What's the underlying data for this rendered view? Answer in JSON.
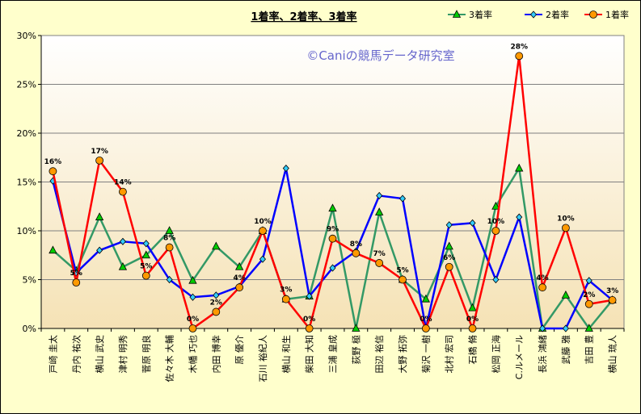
{
  "chart_data": {
    "type": "line",
    "title": "1着率、2着率、3着率",
    "watermark": "©Caniの競馬データ研究室",
    "ylim": [
      0,
      30
    ],
    "yticks": [
      "0%",
      "5%",
      "10%",
      "15%",
      "20%",
      "25%",
      "30%"
    ],
    "grid": true,
    "legend_position": "top-right",
    "categories": [
      "戸崎 圭太",
      "丹内 祐次",
      "横山 武史",
      "津村 明秀",
      "菅原 明良",
      "佐々木 大輔",
      "木幡 巧也",
      "内田 博幸",
      "原 優介",
      "石川 裕紀人",
      "横山 和生",
      "柴田 大知",
      "三浦 皇成",
      "荻野 極",
      "田辺 裕信",
      "大野 拓弥",
      "菊沢 一樹",
      "北村 宏司",
      "石橋 脩",
      "松岡 正海",
      "C.ルメール",
      "長浜 鴻緒",
      "武藤 雅",
      "吉田 豊",
      "横山 琉人"
    ],
    "series": [
      {
        "name": "3着率",
        "color": "#339966",
        "marker": "triangle",
        "marker_fill": "#00cc00",
        "values": [
          8.0,
          5.9,
          11.4,
          6.3,
          7.5,
          10.0,
          4.9,
          8.4,
          6.3,
          10.0,
          3.0,
          3.3,
          12.3,
          0.0,
          11.9,
          5.0,
          3.0,
          8.4,
          2.1,
          12.5,
          16.4,
          0.0,
          3.4,
          0.0,
          2.9
        ]
      },
      {
        "name": "2着率",
        "color": "#0000ff",
        "marker": "diamond",
        "marker_fill": "#33ccff",
        "values": [
          15.1,
          5.7,
          8.0,
          8.9,
          8.7,
          5.0,
          3.2,
          3.4,
          4.3,
          7.1,
          16.4,
          3.3,
          6.2,
          7.9,
          13.6,
          13.3,
          0.0,
          10.6,
          10.8,
          5.0,
          11.4,
          0.0,
          0.0,
          4.9,
          2.9
        ]
      },
      {
        "name": "1着率",
        "color": "#ff0000",
        "marker": "circle",
        "marker_fill": "#ff9900",
        "values": [
          16.1,
          4.7,
          17.2,
          14.0,
          5.4,
          8.3,
          0.0,
          1.7,
          4.2,
          10.0,
          3.0,
          0.0,
          9.2,
          7.7,
          6.7,
          5.0,
          0.0,
          6.3,
          0.0,
          10.0,
          27.9,
          4.2,
          10.3,
          2.5,
          2.9
        ]
      }
    ],
    "data_labels": [
      "16%",
      "5%",
      "17%",
      "14%",
      "5%",
      "8%",
      "0%",
      "2%",
      "4%",
      "10%",
      "3%",
      "0%",
      "9%",
      "8%",
      "7%",
      "5%",
      "0%",
      "6%",
      "0%",
      "10%",
      "28%",
      "4%",
      "10%",
      "2%",
      "3%"
    ]
  }
}
